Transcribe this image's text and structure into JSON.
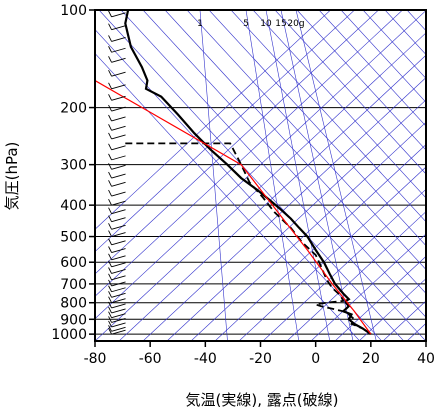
{
  "chart_data": {
    "type": "line",
    "xlabel": "気温(実線), 露点(破線)",
    "ylabel": "気圧(hPa)",
    "xlim": [
      -80,
      40
    ],
    "ylim": [
      1050,
      100
    ],
    "y_scale": "log",
    "x_ticks": [
      -80,
      -60,
      -40,
      -20,
      0,
      20,
      40
    ],
    "y_ticks": [
      100,
      200,
      300,
      400,
      500,
      600,
      700,
      800,
      900,
      1000
    ],
    "mixing_ratio_labels": [
      "1",
      "5",
      "10",
      "15",
      "20g"
    ],
    "grid": true,
    "colors": {
      "temperature": "#000000",
      "dewpoint": "#000000",
      "reference": "#ff0000",
      "adiabats": "#3333cc",
      "wind": "#000000"
    },
    "series": [
      {
        "style": "solid",
        "points": [
          [
            -68,
            100
          ],
          [
            -69,
            110
          ],
          [
            -67,
            130
          ],
          [
            -63,
            150
          ],
          [
            -61,
            165
          ],
          [
            -61.5,
            175
          ],
          [
            -56,
            185
          ],
          [
            -50,
            210
          ],
          [
            -44,
            240
          ],
          [
            -38,
            270
          ],
          [
            -32,
            300
          ],
          [
            -27,
            330
          ],
          [
            -21,
            360
          ],
          [
            -16,
            390
          ],
          [
            -13,
            410
          ],
          [
            -9,
            440
          ],
          [
            -6,
            470
          ],
          [
            -3,
            500
          ],
          [
            0,
            550
          ],
          [
            3,
            600
          ],
          [
            5,
            650
          ],
          [
            7,
            700
          ],
          [
            10,
            750
          ],
          [
            12,
            780
          ],
          [
            11,
            790
          ],
          [
            11,
            800
          ],
          [
            12,
            820
          ],
          [
            10,
            850
          ],
          [
            13,
            870
          ],
          [
            12,
            900
          ],
          [
            14,
            930
          ],
          [
            17,
            960
          ],
          [
            20,
            1000
          ]
        ]
      },
      {
        "style": "dashed",
        "points": [
          [
            -69,
            258
          ],
          [
            -31,
            258
          ],
          [
            -27,
            300
          ],
          [
            -24,
            340
          ],
          [
            -19,
            380
          ],
          [
            -15,
            420
          ],
          [
            -9,
            470
          ],
          [
            -5,
            520
          ],
          [
            0,
            570
          ],
          [
            2,
            620
          ],
          [
            4,
            680
          ],
          [
            6,
            720
          ],
          [
            9,
            760
          ],
          [
            10,
            790
          ],
          [
            4,
            800
          ],
          [
            0,
            810
          ],
          [
            2,
            820
          ],
          [
            10,
            850
          ],
          [
            12,
            870
          ],
          [
            14,
            900
          ],
          [
            13,
            930
          ],
          [
            17,
            960
          ],
          [
            20,
            1000
          ]
        ]
      },
      {
        "style": "reference",
        "points": [
          [
            -80,
            165
          ],
          [
            -27,
            300
          ],
          [
            -11,
            450
          ],
          [
            -3,
            550
          ],
          [
            6,
            700
          ],
          [
            14,
            850
          ],
          [
            20,
            1000
          ]
        ]
      }
    ],
    "wind_barb_pressures": [
      105,
      115,
      125,
      135,
      145,
      160,
      175,
      190,
      205,
      220,
      235,
      250,
      270,
      290,
      310,
      330,
      350,
      375,
      400,
      425,
      450,
      475,
      500,
      530,
      560,
      590,
      620,
      650,
      680,
      710,
      740,
      770,
      800,
      830,
      860,
      890,
      920,
      950,
      980,
      1000
    ]
  }
}
